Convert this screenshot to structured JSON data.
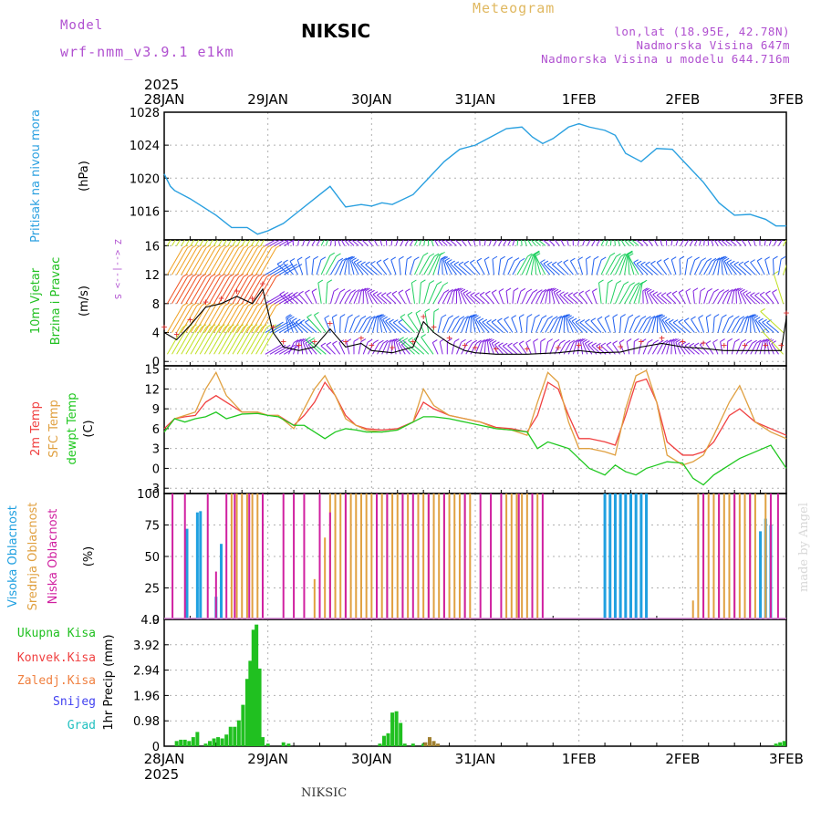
{
  "header": {
    "model_label": "Model",
    "model_name": "wrf-nmm_v3.9.1  e1km",
    "station": "NIKSIC",
    "meteogram_label": "Meteogram",
    "lonlat": "lon,lat (18.95E, 42.78N)",
    "elevation": "Nadmorska Visina 647m",
    "model_elevation": "Nadmorska Visina u modelu 644.716m",
    "credit": "made by Angel",
    "footer_station": "NIKSIC"
  },
  "colors": {
    "pressure": "#2aa0e0",
    "temp2m": "#f04040",
    "sfc_temp": "#e0a040",
    "dewpt": "#20c820",
    "cloud_high": "#20a0e0",
    "cloud_mid": "#e0a040",
    "cloud_low": "#d020a0",
    "precip": "#20c020",
    "grid": "#b0b0b0"
  },
  "chart_data": [
    {
      "type": "line",
      "panel": "pressure",
      "ylabel": [
        "Pritisak na nivou mora",
        "(hPa)"
      ],
      "ylim": [
        1012.5,
        1028
      ],
      "yticks": [
        1016,
        1020,
        1024,
        1028
      ],
      "x_ticks_top": [
        "28JAN",
        "29JAN",
        "30JAN",
        "31JAN",
        "1FEB",
        "2FEB",
        "3FEB"
      ],
      "year_top": "2025",
      "grid": true,
      "x_days": [
        0,
        0.06,
        0.1,
        0.25,
        0.5,
        0.65,
        0.8,
        0.9,
        1.0,
        1.15,
        1.3,
        1.45,
        1.6,
        1.75,
        1.9,
        2.0,
        2.1,
        2.2,
        2.4,
        2.55,
        2.7,
        2.85,
        3.0,
        3.15,
        3.3,
        3.45,
        3.55,
        3.65,
        3.75,
        3.9,
        4.0,
        4.1,
        4.25,
        4.35,
        4.45,
        4.6,
        4.75,
        4.9,
        5.05,
        5.2,
        5.35,
        5.5,
        5.65,
        5.8,
        5.9,
        6.0
      ],
      "series": [
        {
          "values": [
            1020.5,
            1019,
            1018.5,
            1017.5,
            1015.5,
            1014,
            1014,
            1013.2,
            1013.6,
            1014.5,
            1016,
            1017.5,
            1019,
            1016.5,
            1016.8,
            1016.6,
            1017,
            1016.8,
            1018,
            1020,
            1022,
            1023.5,
            1024,
            1025,
            1026,
            1026.2,
            1025,
            1024.2,
            1024.8,
            1026.2,
            1026.6,
            1026.2,
            1025.8,
            1025.2,
            1023,
            1022,
            1023.6,
            1023.5,
            1021.5,
            1019.5,
            1017,
            1015.5,
            1015.6,
            1015,
            1014.2,
            1014.2
          ]
        }
      ]
    },
    {
      "type": "line",
      "panel": "wind",
      "ylabel": [
        "10m Vjetar",
        "Brzina i Pravac",
        "(m/s)"
      ],
      "direction_key": [
        "Z",
        "<--|-->",
        "S"
      ],
      "ylim": [
        -0.6,
        16.8
      ],
      "yticks": [
        0,
        4,
        8,
        12,
        16
      ],
      "grid": true,
      "x_days": [
        0,
        0.12,
        0.25,
        0.4,
        0.55,
        0.7,
        0.85,
        0.95,
        1.05,
        1.15,
        1.3,
        1.45,
        1.6,
        1.75,
        1.9,
        2.0,
        2.2,
        2.4,
        2.5,
        2.6,
        2.75,
        2.9,
        3.0,
        3.2,
        3.5,
        3.8,
        4.0,
        4.2,
        4.4,
        4.6,
        4.8,
        5.0,
        5.2,
        5.4,
        5.6,
        5.8,
        5.95,
        6.0
      ],
      "series": [
        {
          "name": "wind speed",
          "values": [
            4,
            3,
            5,
            7.5,
            8,
            9,
            8,
            10,
            4,
            2,
            1.5,
            2,
            4.5,
            2,
            2.5,
            1.5,
            1.2,
            2,
            5.5,
            4,
            2.5,
            1.5,
            1.2,
            1,
            1,
            1.2,
            1.5,
            1.2,
            1.3,
            2,
            2.5,
            2,
            1.8,
            1.5,
            1.5,
            1.5,
            1.5,
            6
          ]
        }
      ],
      "barb_levels": [
        1,
        4,
        8,
        12,
        16
      ]
    },
    {
      "type": "line",
      "panel": "temperature",
      "ylabel": [
        "2m Temp",
        "SFC Temp",
        "dewpt Temp",
        "(C)"
      ],
      "ylim": [
        -3.8,
        15.5
      ],
      "yticks": [
        -3,
        0,
        3,
        6,
        9,
        12,
        15
      ],
      "grid": true,
      "x_days": [
        0,
        0.1,
        0.2,
        0.3,
        0.4,
        0.5,
        0.6,
        0.75,
        0.9,
        1.0,
        1.1,
        1.25,
        1.35,
        1.45,
        1.55,
        1.65,
        1.75,
        1.85,
        1.95,
        2.1,
        2.25,
        2.4,
        2.5,
        2.6,
        2.75,
        2.9,
        3.05,
        3.2,
        3.35,
        3.5,
        3.6,
        3.7,
        3.8,
        3.9,
        4.0,
        4.1,
        4.25,
        4.35,
        4.45,
        4.55,
        4.65,
        4.75,
        4.85,
        5.0,
        5.1,
        5.2,
        5.3,
        5.45,
        5.55,
        5.7,
        5.85,
        6.0
      ],
      "series": [
        {
          "name": "2m Temp",
          "values": [
            6,
            7.5,
            7.8,
            8,
            10,
            11,
            10,
            8.5,
            8.5,
            8,
            8,
            6.5,
            8,
            10,
            13,
            11,
            8,
            6.5,
            6,
            5.8,
            6,
            7,
            10,
            9,
            8,
            7.5,
            7,
            6.2,
            6,
            5.5,
            8,
            13,
            12,
            8,
            4.5,
            4.5,
            4,
            3.5,
            8,
            13,
            13.5,
            10,
            4,
            2,
            2,
            2.5,
            4,
            8,
            9,
            7,
            6,
            5
          ]
        },
        {
          "name": "SFC Temp",
          "values": [
            5.5,
            7.5,
            8,
            8.5,
            12,
            14.5,
            11,
            8.5,
            8.5,
            8,
            8,
            6,
            9,
            12,
            14,
            11,
            7.5,
            6.5,
            5.8,
            5.5,
            5.8,
            7,
            12,
            9.5,
            8,
            7.5,
            7,
            6,
            5.8,
            5,
            10,
            14.5,
            13,
            7,
            3,
            3,
            2.5,
            2,
            9,
            14,
            14.8,
            10,
            2,
            0.5,
            1,
            2,
            5,
            10,
            12.5,
            7,
            5.5,
            4.5
          ]
        },
        {
          "name": "dewpt Temp",
          "values": [
            5.5,
            7.5,
            7,
            7.5,
            7.8,
            8.5,
            7.5,
            8.2,
            8.3,
            8,
            7.8,
            6.5,
            6.5,
            5.5,
            4.5,
            5.5,
            6,
            5.8,
            5.5,
            5.5,
            5.8,
            7,
            7.8,
            7.8,
            7.5,
            7,
            6.5,
            6,
            5.8,
            5.5,
            3,
            4,
            3.5,
            3,
            1.5,
            0,
            -1,
            0.5,
            -0.5,
            -1,
            0,
            0.5,
            1,
            0.8,
            -1.5,
            -2.5,
            -1,
            0.5,
            1.5,
            2.5,
            3.5,
            0
          ]
        }
      ]
    },
    {
      "type": "bar",
      "panel": "cloud",
      "ylabel": [
        "Visoka Oblacnost",
        "Srednja Oblacnost",
        "Niska Oblacnost",
        "(%)"
      ],
      "ylim": [
        0,
        100
      ],
      "yticks": [
        0,
        25,
        50,
        75,
        100
      ],
      "grid": true,
      "series": [
        {
          "name": "Visoka Oblacnost",
          "x_days": [
            0.22,
            0.32,
            0.35,
            0.5,
            0.55,
            4.25,
            4.3,
            4.35,
            4.4,
            4.45,
            4.5,
            4.55,
            4.6,
            4.65,
            5.75,
            5.8,
            5.85
          ],
          "values": [
            72,
            85,
            86,
            18,
            60,
            100,
            100,
            100,
            100,
            100,
            100,
            100,
            100,
            100,
            70,
            80,
            75
          ]
        },
        {
          "name": "Srednja Oblacnost",
          "x_days": [
            0.65,
            0.7,
            0.75,
            0.8,
            0.85,
            0.9,
            1.45,
            1.55,
            1.6,
            1.65,
            1.7,
            1.75,
            1.8,
            1.85,
            1.9,
            1.95,
            2.0,
            2.05,
            2.1,
            2.15,
            2.2,
            2.25,
            2.3,
            2.35,
            2.45,
            2.5,
            2.55,
            2.6,
            2.65,
            2.7,
            2.75,
            2.8,
            2.85,
            2.9,
            2.95,
            3.3,
            3.35,
            3.4,
            3.45,
            3.5,
            3.55,
            3.6,
            5.1,
            5.15,
            5.2,
            5.25,
            5.3,
            5.35,
            5.4,
            5.45,
            5.5,
            5.55,
            5.6,
            5.65,
            5.7,
            5.8
          ],
          "values": [
            100,
            100,
            100,
            100,
            100,
            100,
            32,
            65,
            100,
            100,
            100,
            100,
            100,
            100,
            100,
            100,
            100,
            100,
            100,
            100,
            100,
            100,
            100,
            100,
            100,
            100,
            100,
            100,
            100,
            100,
            100,
            100,
            100,
            100,
            100,
            100,
            100,
            100,
            100,
            100,
            100,
            100,
            15,
            100,
            100,
            100,
            100,
            100,
            100,
            100,
            100,
            100,
            100,
            100,
            100,
            100
          ]
        },
        {
          "name": "Niska Oblacnost",
          "x_days": [
            0.08,
            0.2,
            0.42,
            0.5,
            0.6,
            0.68,
            0.82,
            0.95,
            1.15,
            1.25,
            1.35,
            1.5,
            1.6,
            1.75,
            2.05,
            2.15,
            2.3,
            2.4,
            2.55,
            2.7,
            2.9,
            3.05,
            3.15,
            3.25,
            3.42,
            3.55,
            3.65,
            5.2,
            5.35,
            5.5,
            5.65,
            5.85,
            5.92
          ],
          "values": [
            100,
            100,
            100,
            38,
            100,
            100,
            100,
            100,
            100,
            100,
            100,
            100,
            85,
            100,
            100,
            100,
            100,
            100,
            100,
            100,
            100,
            100,
            100,
            100,
            100,
            100,
            100,
            100,
            100,
            100,
            100,
            100,
            100
          ]
        }
      ]
    },
    {
      "type": "bar",
      "panel": "precip",
      "ylabel": [
        "1hr Precip (mm)"
      ],
      "legend": [
        "Ukupna Kisa",
        "Konvek.Kisa",
        "Zaledj.Kisa",
        "Snijeg",
        "Grad"
      ],
      "ylim": [
        0,
        4.9
      ],
      "yticks": [
        0,
        0.98,
        1.96,
        2.94,
        3.92,
        4.9
      ],
      "x_ticks_bottom": [
        "28JAN",
        "29JAN",
        "30JAN",
        "31JAN",
        "1FEB",
        "2FEB",
        "3FEB"
      ],
      "year_bottom": "2025",
      "grid": true,
      "series": [
        {
          "name": "Ukupna Kisa",
          "x_days": [
            0.12,
            0.16,
            0.2,
            0.24,
            0.28,
            0.32,
            0.4,
            0.44,
            0.48,
            0.52,
            0.56,
            0.6,
            0.64,
            0.68,
            0.72,
            0.76,
            0.8,
            0.83,
            0.86,
            0.89,
            0.92,
            0.95,
            1.0,
            1.15,
            1.2,
            2.08,
            2.12,
            2.16,
            2.2,
            2.24,
            2.28,
            2.32,
            2.4,
            2.5,
            2.6,
            5.9,
            5.94,
            5.98
          ],
          "values": [
            0.2,
            0.25,
            0.25,
            0.2,
            0.35,
            0.55,
            0.1,
            0.2,
            0.3,
            0.35,
            0.3,
            0.45,
            0.75,
            0.75,
            1.0,
            1.6,
            2.6,
            3.3,
            4.5,
            4.7,
            3.0,
            0.35,
            0.1,
            0.15,
            0.1,
            0.1,
            0.4,
            0.5,
            1.3,
            1.35,
            0.9,
            0.1,
            0.1,
            0.1,
            0.1,
            0.1,
            0.15,
            0.2
          ]
        },
        {
          "name": "Zaledj.Kisa",
          "x_days": [
            2.52,
            2.56,
            2.6,
            2.64
          ],
          "values": [
            0.15,
            0.35,
            0.2,
            0.1
          ]
        }
      ]
    }
  ]
}
